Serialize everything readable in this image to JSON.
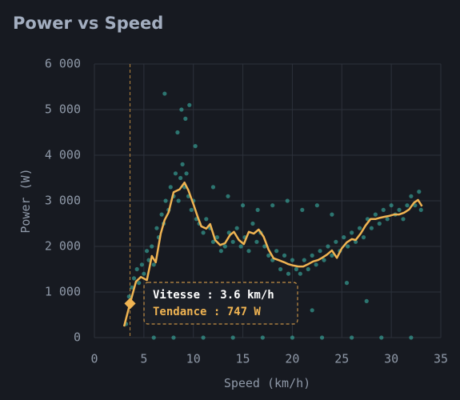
{
  "chart_data": {
    "type": "scatter",
    "title": "Power vs Speed",
    "x_label": "Speed (km/h)",
    "y_label": "Power (W)",
    "xlim": [
      0,
      35
    ],
    "xticks": [
      0,
      5,
      10,
      15,
      20,
      25,
      30,
      35
    ],
    "ylim": [
      0,
      6000
    ],
    "yticks": [
      0,
      {
        "value": 1000,
        "label": "1 000"
      },
      {
        "value": 2000,
        "label": "2 000"
      },
      {
        "value": 3000,
        "label": "3 000"
      },
      {
        "value": 4000,
        "label": "4 000"
      },
      {
        "value": 5000,
        "label": "5 000"
      },
      {
        "value": 6000,
        "label": "6 000"
      }
    ],
    "grid": true,
    "series": [
      {
        "type": "scatter",
        "color": "#3ec1b2",
        "x": [
          3.2,
          3.5,
          3.8,
          4.0,
          4.3,
          4.5,
          4.8,
          5.0,
          5.3,
          5.5,
          5.8,
          6.0,
          6.3,
          6.5,
          6.8,
          7.0,
          7.2,
          7.5,
          7.7,
          8.0,
          8.2,
          8.5,
          8.7,
          8.9,
          9.1,
          9.3,
          9.5,
          9.8,
          10.0,
          10.3,
          10.6,
          11.0,
          11.3,
          11.7,
          12.0,
          12.4,
          12.8,
          13.2,
          13.6,
          14.0,
          14.4,
          14.8,
          15.2,
          15.6,
          16.0,
          16.4,
          16.8,
          17.2,
          17.6,
          18.0,
          18.4,
          18.8,
          19.2,
          19.6,
          20.0,
          20.4,
          20.8,
          21.2,
          21.6,
          22.0,
          22.4,
          22.8,
          23.2,
          23.6,
          24.0,
          24.4,
          24.8,
          25.2,
          25.6,
          26.0,
          26.4,
          26.8,
          27.2,
          27.6,
          28.0,
          28.4,
          28.8,
          29.2,
          29.6,
          30.0,
          30.4,
          30.8,
          31.2,
          31.6,
          32.0,
          32.4,
          32.8,
          33.0,
          8.4,
          8.8,
          9.2,
          9.6,
          7.1,
          10.2,
          15.0,
          16.5,
          18.0,
          19.5,
          21.0,
          22.5,
          24.0,
          12.0,
          13.5,
          6.0,
          8.0,
          11.0,
          14.0,
          17.0,
          20.0,
          23.0,
          26.0,
          29.0,
          32.0,
          27.5,
          25.5,
          22.0
        ],
        "values": [
          300,
          900,
          1100,
          1300,
          1500,
          1200,
          1600,
          1400,
          1900,
          1700,
          2000,
          1600,
          2400,
          2200,
          2700,
          2500,
          3000,
          2800,
          3300,
          3100,
          3600,
          3000,
          3500,
          3800,
          3300,
          3600,
          3100,
          2800,
          3000,
          2600,
          2500,
          2300,
          2600,
          2400,
          2100,
          2200,
          1900,
          2000,
          2300,
          2100,
          2400,
          2000,
          2200,
          1900,
          2500,
          2100,
          2300,
          2000,
          1800,
          1700,
          1900,
          1500,
          1800,
          1400,
          1700,
          1500,
          1400,
          1700,
          1500,
          1800,
          1600,
          1900,
          1700,
          2000,
          1800,
          2100,
          1900,
          2200,
          2000,
          2300,
          2100,
          2400,
          2200,
          2600,
          2400,
          2700,
          2500,
          2800,
          2600,
          2900,
          2700,
          2800,
          2600,
          2900,
          3100,
          2900,
          3200,
          2800,
          4500,
          5000,
          4800,
          5100,
          5350,
          4200,
          2900,
          2800,
          2900,
          3000,
          2800,
          2900,
          2700,
          3300,
          3100,
          0,
          0,
          0,
          0,
          0,
          0,
          0,
          0,
          0,
          0,
          800,
          1200,
          600
        ]
      },
      {
        "type": "line",
        "color": "#f0b452",
        "x": [
          3.0,
          3.6,
          4.2,
          4.7,
          5.3,
          5.8,
          6.2,
          6.7,
          7.1,
          7.5,
          8.0,
          8.6,
          9.1,
          9.5,
          10.0,
          10.4,
          10.8,
          11.3,
          11.7,
          12.2,
          12.7,
          13.2,
          13.7,
          14.1,
          14.6,
          15.1,
          15.6,
          16.1,
          16.6,
          17.1,
          17.6,
          18.1,
          18.6,
          19.2,
          19.6,
          20.1,
          20.6,
          21.1,
          21.6,
          22.1,
          22.6,
          23.0,
          23.5,
          24.0,
          24.5,
          25.0,
          25.5,
          26.0,
          26.4,
          26.9,
          27.4,
          27.9,
          28.4,
          28.9,
          29.3,
          29.8,
          30.3,
          30.8,
          31.3,
          31.8,
          32.3,
          32.7,
          33.1
        ],
        "values": [
          245,
          747,
          1230,
          1330,
          1260,
          1790,
          1650,
          2280,
          2580,
          2750,
          3190,
          3250,
          3400,
          3230,
          2930,
          2670,
          2440,
          2390,
          2490,
          2140,
          2030,
          2070,
          2250,
          2320,
          2140,
          2050,
          2320,
          2280,
          2370,
          2210,
          1930,
          1740,
          1700,
          1650,
          1610,
          1580,
          1560,
          1560,
          1610,
          1670,
          1700,
          1750,
          1820,
          1910,
          1750,
          1960,
          2090,
          2160,
          2140,
          2280,
          2460,
          2600,
          2600,
          2630,
          2650,
          2670,
          2700,
          2700,
          2740,
          2810,
          2960,
          3020,
          2880
        ]
      }
    ],
    "tooltip": {
      "x": 3.6,
      "y": 747,
      "lines": [
        "Vitesse : 3.6 km/h",
        "Tendance : 747 W"
      ]
    }
  }
}
